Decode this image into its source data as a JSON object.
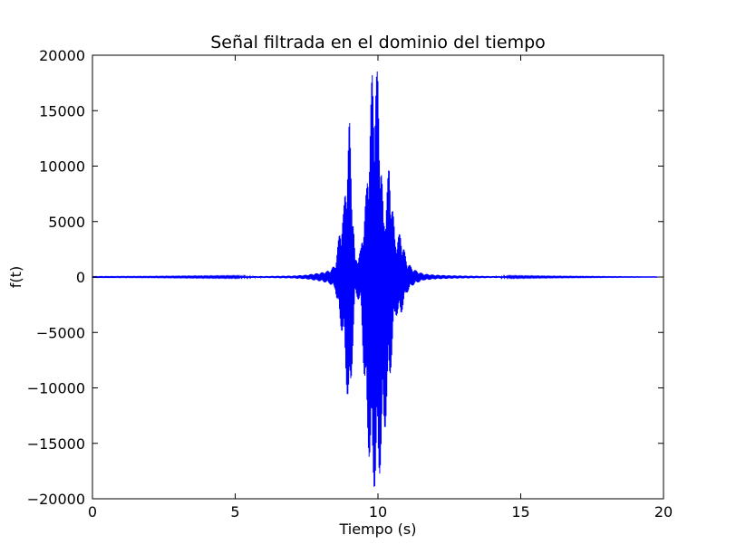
{
  "chart_data": {
    "type": "line",
    "title": "Señal filtrada en el dominio del tiempo",
    "xlabel": "Tiempo (s)",
    "ylabel": "f(t)",
    "xlim": [
      0,
      20
    ],
    "ylim": [
      -20000,
      20000
    ],
    "x_ticks": [
      0,
      5,
      10,
      15,
      20
    ],
    "x_tick_labels": [
      "0",
      "5",
      "10",
      "15",
      "20"
    ],
    "y_ticks": [
      -20000,
      -15000,
      -10000,
      -5000,
      0,
      5000,
      10000,
      15000,
      20000
    ],
    "y_tick_labels": [
      "−20000",
      "−15000",
      "−10000",
      "−5000",
      "0",
      "5000",
      "10000",
      "15000",
      "20000"
    ],
    "grid": false,
    "legend": "none",
    "series": [
      {
        "color": "#0000ff",
        "x": [
          0,
          2,
          4,
          6,
          7,
          7.5,
          8,
          8.3,
          8.5,
          8.7,
          8.8,
          9,
          9.2,
          9.4,
          9.6,
          9.8,
          10,
          10.2,
          10.4,
          10.6,
          10.8,
          11,
          11.2,
          11.4,
          11.6,
          12,
          12.5,
          13,
          14,
          16,
          18,
          19.8
        ],
        "upper": [
          30,
          40,
          60,
          80,
          120,
          200,
          400,
          600,
          1100,
          5000,
          6000,
          14500,
          1500,
          2500,
          8000,
          18800,
          18500,
          5000,
          10500,
          3500,
          4000,
          1500,
          800,
          500,
          300,
          200,
          150,
          120,
          80,
          50,
          30,
          20
        ],
        "lower": [
          -30,
          -40,
          -60,
          -80,
          -120,
          -200,
          -400,
          -600,
          -1100,
          -4500,
          -6000,
          -13700,
          -1500,
          -2500,
          -14000,
          -19100,
          -19000,
          -15000,
          -10000,
          -3500,
          -3500,
          -1500,
          -800,
          -500,
          -300,
          -200,
          -150,
          -120,
          -80,
          -50,
          -30,
          -20
        ]
      }
    ]
  }
}
